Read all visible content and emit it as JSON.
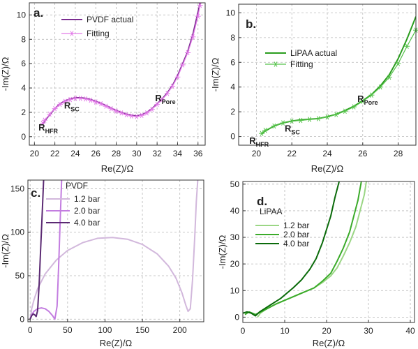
{
  "chart_data": [
    {
      "panel": "a.",
      "type": "line",
      "xlabel": "Re(Z)/Ω",
      "ylabel": "-Im(Z)/Ω",
      "xlim": [
        19.5,
        36.7
      ],
      "ylim": [
        -0.7,
        11
      ],
      "xticks": [
        20,
        22,
        24,
        26,
        28,
        30,
        32,
        34,
        36
      ],
      "yticks": [
        0,
        2,
        4,
        6,
        8,
        10
      ],
      "grid": true,
      "legend": "top-center",
      "annotations": [
        {
          "main": "R",
          "sub": "HFR",
          "x": 20.4,
          "y": 0.5
        },
        {
          "main": "R",
          "sub": "SC",
          "x": 22.9,
          "y": 2.3
        },
        {
          "main": "R",
          "sub": "Pore",
          "x": 31.8,
          "y": 2.9
        }
      ],
      "series": [
        {
          "name": "PVDF actual",
          "color": "#7b2d90",
          "marker": "none",
          "x": [
            20.8,
            21.0,
            21.5,
            22.0,
            22.5,
            23.0,
            23.5,
            24.0,
            24.5,
            25.0,
            25.5,
            26.0,
            26.5,
            27.0,
            27.5,
            28.0,
            28.5,
            29.0,
            29.5,
            30.0,
            30.5,
            31.0,
            31.5,
            32.0,
            32.5,
            33.0,
            33.5,
            34.0,
            34.5,
            35.0,
            35.5,
            36.0,
            36.2
          ],
          "y": [
            1.0,
            1.3,
            1.8,
            2.3,
            2.7,
            2.95,
            3.1,
            3.2,
            3.2,
            3.15,
            3.05,
            2.9,
            2.75,
            2.55,
            2.35,
            2.15,
            2.0,
            1.85,
            1.75,
            1.7,
            1.8,
            2.0,
            2.3,
            2.7,
            3.1,
            3.6,
            4.2,
            5.0,
            6.0,
            7.0,
            8.4,
            10.2,
            11.0
          ]
        },
        {
          "name": "Fitting",
          "color": "#e27ae8",
          "marker": "asterisk",
          "x": [
            20.8,
            21.0,
            21.5,
            22.0,
            22.5,
            23.0,
            23.5,
            24.0,
            24.5,
            25.0,
            25.5,
            26.0,
            26.5,
            27.0,
            27.5,
            28.0,
            28.5,
            29.0,
            29.5,
            30.0,
            30.5,
            31.0,
            31.5,
            32.0,
            32.5,
            33.0,
            33.5,
            34.0,
            34.5,
            35.0,
            35.5,
            36.0,
            36.2
          ],
          "y": [
            1.1,
            1.35,
            1.85,
            2.3,
            2.65,
            2.9,
            3.05,
            3.15,
            3.15,
            3.1,
            3.0,
            2.85,
            2.7,
            2.5,
            2.3,
            2.1,
            1.95,
            1.8,
            1.7,
            1.65,
            1.75,
            1.95,
            2.25,
            2.65,
            3.05,
            3.55,
            4.15,
            4.9,
            5.9,
            6.9,
            8.2,
            9.9,
            10.8
          ]
        }
      ]
    },
    {
      "panel": "b.",
      "type": "line",
      "xlabel": "Re(Z)/Ω",
      "ylabel": "-Im(Z)/Ω",
      "xlim": [
        19.0,
        29.0
      ],
      "ylim": [
        -0.7,
        10.7
      ],
      "xticks": [
        20,
        22,
        24,
        26,
        28
      ],
      "yticks": [
        0,
        2,
        4,
        6,
        8,
        10
      ],
      "grid": true,
      "legend": "top-center",
      "annotations": [
        {
          "main": "R",
          "sub": "HFR",
          "x": 19.6,
          "y": -0.6
        },
        {
          "main": "R",
          "sub": "SC",
          "x": 21.6,
          "y": 0.4
        },
        {
          "main": "R",
          "sub": "Pore",
          "x": 25.7,
          "y": 2.8
        }
      ],
      "series": [
        {
          "name": "LiPAA actual",
          "color": "#2a9d1e",
          "marker": "none",
          "x": [
            20.3,
            20.5,
            21.0,
            21.5,
            22.0,
            22.5,
            23.0,
            23.5,
            24.0,
            24.5,
            25.0,
            25.5,
            26.0,
            26.5,
            27.0,
            27.5,
            28.0,
            28.5,
            29.0
          ],
          "y": [
            0.2,
            0.45,
            0.85,
            1.1,
            1.25,
            1.35,
            1.4,
            1.45,
            1.6,
            1.8,
            2.1,
            2.45,
            2.9,
            3.4,
            4.1,
            5.0,
            6.3,
            7.9,
            9.7
          ]
        },
        {
          "name": "Fitting",
          "color": "#55c24a",
          "marker": "asterisk",
          "x": [
            20.3,
            20.5,
            21.0,
            21.5,
            22.0,
            22.5,
            23.0,
            23.5,
            24.0,
            24.5,
            25.0,
            25.5,
            26.0,
            26.5,
            27.0,
            27.5,
            28.0,
            28.5,
            29.0
          ],
          "y": [
            0.25,
            0.5,
            0.85,
            1.1,
            1.25,
            1.3,
            1.38,
            1.45,
            1.58,
            1.78,
            2.05,
            2.4,
            2.85,
            3.35,
            4.0,
            4.8,
            5.9,
            7.3,
            8.6
          ]
        }
      ]
    },
    {
      "panel": "c.",
      "type": "line",
      "xlabel": "Re(Z)/Ω",
      "ylabel": "-Im(Z)/Ω",
      "xlim": [
        -3,
        232
      ],
      "ylim": [
        -3,
        160
      ],
      "xticks": [
        0,
        50,
        100,
        150,
        200
      ],
      "yticks": [
        0,
        50,
        100,
        150
      ],
      "grid": true,
      "legend_title": "PVDF",
      "legend": "top-center",
      "series": [
        {
          "name": "1.2 bar",
          "color": "#d2b8dc",
          "x": [
            0,
            1,
            2,
            5,
            10,
            20,
            35,
            50,
            70,
            90,
            110,
            130,
            150,
            170,
            185,
            195,
            203,
            208,
            211,
            214,
            217,
            220,
            222,
            224
          ],
          "y": [
            0,
            5,
            12,
            22,
            35,
            52,
            68,
            79,
            88,
            93,
            94,
            92,
            86,
            75,
            61,
            47,
            30,
            16,
            9,
            12,
            45,
            95,
            135,
            160
          ]
        },
        {
          "name": "2.0 bar",
          "color": "#c37de0",
          "x": [
            0,
            2,
            5,
            10,
            15,
            20,
            25,
            30,
            33,
            36,
            38,
            40,
            42
          ],
          "y": [
            0,
            5,
            9,
            12,
            13,
            12,
            9,
            4,
            0,
            15,
            60,
            110,
            160
          ]
        },
        {
          "name": "4.0 bar",
          "color": "#5b2a73",
          "x": [
            0,
            2,
            4,
            6,
            8,
            10,
            12,
            14,
            16,
            18
          ],
          "y": [
            0,
            4,
            6,
            5,
            3,
            10,
            40,
            80,
            120,
            160
          ]
        }
      ]
    },
    {
      "panel": "d.",
      "type": "line",
      "xlabel": "Re(Z)/Ω",
      "ylabel": "-Im(Z)/Ω",
      "xlim": [
        0,
        41
      ],
      "ylim": [
        -2,
        51
      ],
      "xticks": [
        0,
        10,
        20,
        30,
        40
      ],
      "yticks": [
        0,
        10,
        20,
        30,
        40,
        50
      ],
      "grid": true,
      "legend_title": "LiPAA",
      "legend": "top-left",
      "series": [
        {
          "name": "1.2 bar",
          "color": "#9bd685",
          "x": [
            3.5,
            4.2,
            5.5,
            8,
            11,
            14,
            17,
            19,
            21,
            22.5,
            24,
            25.5,
            27,
            28,
            29,
            29.5
          ],
          "y": [
            0,
            1.5,
            3,
            5,
            7,
            9,
            11,
            13,
            15.5,
            18.5,
            23,
            28,
            34,
            40,
            46,
            51
          ]
        },
        {
          "name": "2.0 bar",
          "color": "#3bab2a",
          "x": [
            0.5,
            1.5,
            3,
            5,
            8,
            11,
            14,
            17,
            19,
            21,
            22.5,
            24,
            25.5,
            26.5,
            27.5,
            28.3
          ],
          "y": [
            1,
            2,
            1,
            2.5,
            5,
            7,
            9,
            11,
            13.5,
            16.5,
            21,
            26,
            32,
            38,
            44,
            51
          ]
        },
        {
          "name": "4.0 bar",
          "color": "#0b6b0b",
          "x": [
            0,
            1,
            2,
            3,
            4,
            6,
            9,
            12,
            14,
            16,
            17.5,
            19,
            20,
            21,
            22,
            23
          ],
          "y": [
            1.5,
            2,
            1.5,
            0.5,
            2,
            4,
            7,
            11,
            14,
            18,
            22,
            28,
            33,
            38,
            45,
            51
          ]
        }
      ]
    }
  ]
}
